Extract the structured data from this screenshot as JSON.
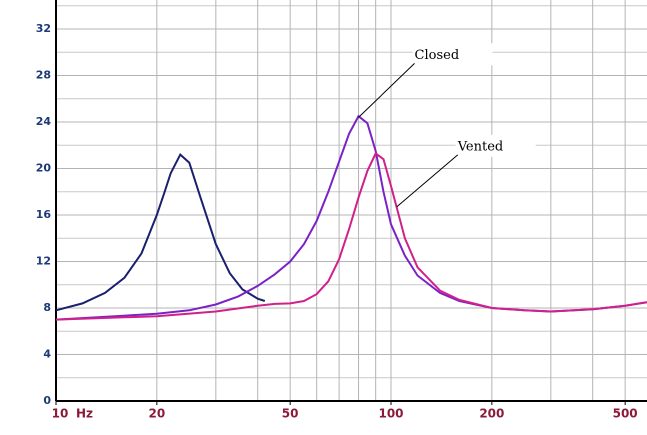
{
  "chart_data": {
    "type": "line",
    "x_unit": "Hz",
    "xlim": [
      10,
      581
    ],
    "xscale": "log",
    "xticks": [
      10,
      20,
      50,
      100,
      200,
      500
    ],
    "xgrid": [
      10,
      20,
      30,
      40,
      50,
      60,
      70,
      80,
      90,
      100,
      200,
      300,
      400,
      500
    ],
    "ylim": [
      0,
      34.5
    ],
    "yticks": [
      0,
      4,
      8,
      12,
      16,
      20,
      24,
      28,
      32
    ],
    "ygrid": [
      2,
      6,
      10,
      14,
      18,
      22,
      26,
      30,
      34
    ],
    "grid": true,
    "series": [
      {
        "color": "#1a1f6e",
        "x": [
          10,
          12,
          14,
          16,
          18,
          20,
          21,
          22,
          23.5,
          25,
          27,
          30,
          33,
          36,
          40,
          42
        ],
        "values": [
          7.8,
          8.4,
          9.3,
          10.6,
          12.7,
          16,
          17.8,
          19.6,
          21.2,
          20.5,
          17.5,
          13.5,
          11,
          9.6,
          8.8,
          8.6
        ]
      },
      {
        "color": "#7a22c8",
        "x": [
          10,
          15,
          20,
          25,
          30,
          35,
          40,
          45,
          50,
          55,
          60,
          65,
          70,
          75,
          80,
          85,
          90,
          95,
          100,
          110,
          120,
          140,
          160,
          200,
          250,
          300,
          400,
          500,
          581
        ],
        "values": [
          7.0,
          7.3,
          7.5,
          7.8,
          8.3,
          9.0,
          9.9,
          10.9,
          12.0,
          13.5,
          15.5,
          18,
          20.6,
          23,
          24.5,
          23.9,
          21.5,
          18,
          15.2,
          12.5,
          10.8,
          9.3,
          8.6,
          8.0,
          7.8,
          7.7,
          7.9,
          8.2,
          8.5
        ]
      },
      {
        "color": "#d0208a",
        "x": [
          10,
          20,
          30,
          40,
          45,
          50,
          55,
          60,
          65,
          70,
          75,
          80,
          85,
          90,
          95,
          100,
          110,
          120,
          140,
          160,
          200,
          250,
          300,
          400,
          500,
          581
        ],
        "values": [
          7.0,
          7.3,
          7.7,
          8.2,
          8.35,
          8.4,
          8.6,
          9.2,
          10.3,
          12.2,
          14.8,
          17.5,
          19.8,
          21.3,
          20.8,
          18.5,
          14,
          11.5,
          9.5,
          8.7,
          8.0,
          7.8,
          7.7,
          7.9,
          8.2,
          8.5
        ]
      }
    ],
    "annotations": [
      {
        "text": "Closed",
        "x": 80,
        "y": 24.4
      },
      {
        "text": "Vented",
        "x": 104,
        "y": 16.7
      }
    ]
  }
}
